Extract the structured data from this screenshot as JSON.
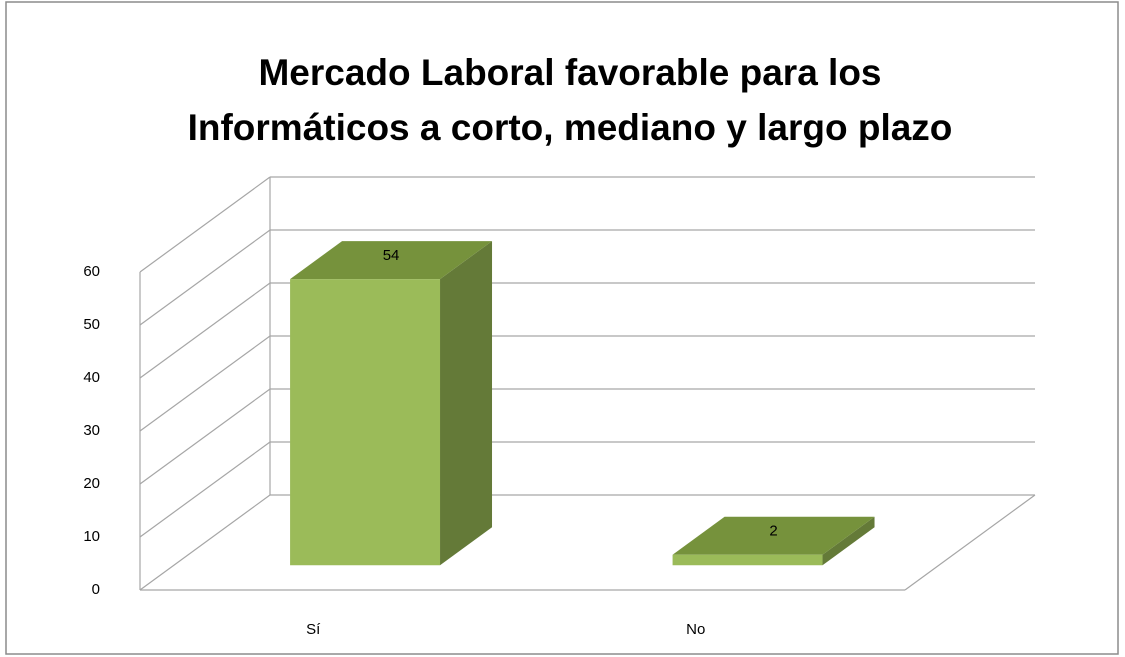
{
  "chart_data": {
    "type": "bar3d",
    "title_lines": [
      "Mercado Laboral favorable para los",
      "Informáticos a corto, mediano y largo plazo"
    ],
    "categories": [
      "Sí",
      "No"
    ],
    "values": [
      54,
      2
    ],
    "color": "#9bbb59",
    "ylim": [
      0,
      60
    ],
    "yticks": [
      0,
      10,
      20,
      30,
      40,
      50,
      60
    ],
    "grid": true
  }
}
